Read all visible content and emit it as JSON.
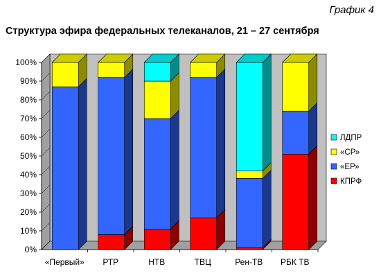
{
  "caption": "График 4",
  "title": "Структура эфира федеральных телеканалов, 21 – 27 сентября",
  "colors": {
    "КПРФ": "#ff0000",
    "«ЕР»": "#3366ff",
    "«СР»": "#ffff00",
    "ЛДПР": "#00ffff",
    "wall": "#c0c0c0",
    "floor": "#a0a0a0"
  },
  "chart_data": {
    "type": "bar",
    "stacked": true,
    "three_d": true,
    "categories": [
      "«Первый»",
      "РТР",
      "НТВ",
      "ТВЦ",
      "Рен-ТВ",
      "РБК ТВ"
    ],
    "series": [
      {
        "name": "КПРФ",
        "values": [
          0,
          8,
          11,
          17,
          1,
          51
        ]
      },
      {
        "name": "«ЕР»",
        "values": [
          87,
          84,
          59,
          75,
          37,
          23
        ]
      },
      {
        "name": "«СР»",
        "values": [
          13,
          8,
          20,
          8,
          4,
          26
        ]
      },
      {
        "name": "ЛДПР",
        "values": [
          0,
          0,
          10,
          0,
          58,
          0
        ]
      }
    ],
    "yticks": [
      "0%",
      "10%",
      "20%",
      "30%",
      "40%",
      "50%",
      "60%",
      "70%",
      "80%",
      "90%",
      "100%"
    ],
    "ylim": [
      0,
      100
    ],
    "grid": false,
    "legend_position": "right",
    "legend_order": [
      "ЛДПР",
      "«СР»",
      "«ЕР»",
      "КПРФ"
    ]
  }
}
